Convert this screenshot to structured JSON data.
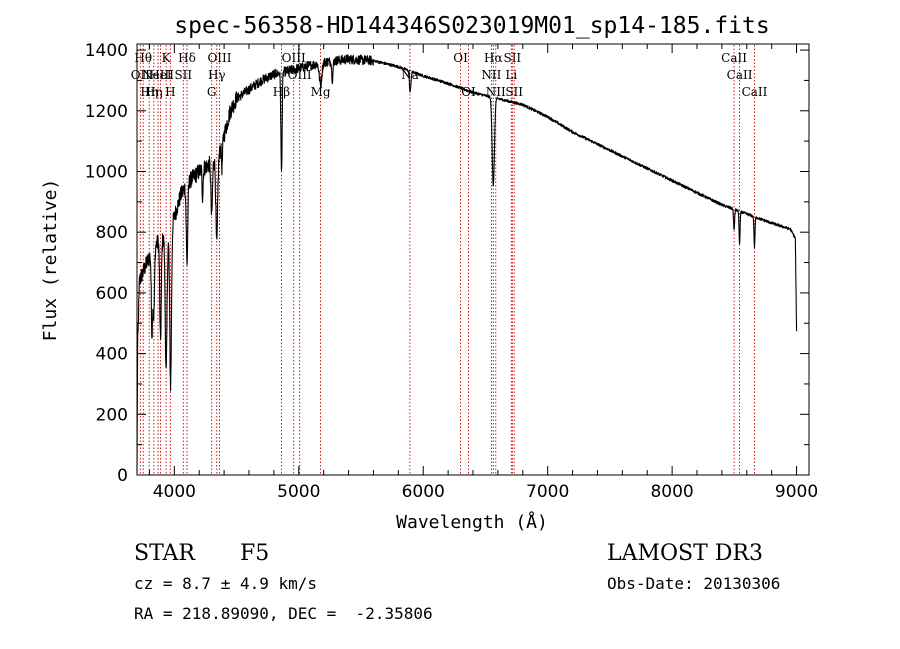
{
  "chart_data": {
    "type": "line",
    "title": "spec-56358-HD144346S023019M01_sp14-185.fits",
    "xlabel": "Wavelength (Å)",
    "ylabel": "Flux (relative)",
    "xlim": [
      3700,
      9100
    ],
    "ylim": [
      0,
      1420
    ],
    "xticks": [
      4000,
      5000,
      6000,
      7000,
      8000,
      9000
    ],
    "xtick_labels": [
      "4000",
      "5000",
      "6000",
      "7000",
      "8000",
      "9000"
    ],
    "yticks": [
      0,
      200,
      400,
      600,
      800,
      1000,
      1200,
      1400
    ],
    "ytick_labels": [
      "0",
      "200",
      "400",
      "600",
      "800",
      "1000",
      "1200",
      "1400"
    ],
    "continuum": [
      [
        3700,
        0
      ],
      [
        3705,
        420
      ],
      [
        3720,
        640
      ],
      [
        3780,
        700
      ],
      [
        3850,
        760
      ],
      [
        3950,
        790
      ],
      [
        4000,
        850
      ],
      [
        4050,
        920
      ],
      [
        4100,
        960
      ],
      [
        4200,
        1000
      ],
      [
        4300,
        1030
      ],
      [
        4350,
        1040
      ],
      [
        4400,
        1120
      ],
      [
        4450,
        1200
      ],
      [
        4500,
        1240
      ],
      [
        4600,
        1270
      ],
      [
        4700,
        1300
      ],
      [
        4800,
        1320
      ],
      [
        5000,
        1340
      ],
      [
        5200,
        1360
      ],
      [
        5400,
        1370
      ],
      [
        5600,
        1365
      ],
      [
        5800,
        1345
      ],
      [
        6000,
        1315
      ],
      [
        6200,
        1290
      ],
      [
        6400,
        1260
      ],
      [
        6600,
        1240
      ],
      [
        6800,
        1220
      ],
      [
        7000,
        1180
      ],
      [
        7200,
        1130
      ],
      [
        7400,
        1090
      ],
      [
        7600,
        1050
      ],
      [
        7800,
        1010
      ],
      [
        8000,
        970
      ],
      [
        8200,
        930
      ],
      [
        8400,
        890
      ],
      [
        8600,
        860
      ],
      [
        8800,
        830
      ],
      [
        8950,
        810
      ],
      [
        8990,
        780
      ],
      [
        9000,
        470
      ]
    ],
    "absorption_lines": [
      {
        "center": 3820,
        "depth": 260,
        "width": 5
      },
      {
        "center": 3835,
        "depth": 220,
        "width": 6
      },
      {
        "center": 3889,
        "depth": 330,
        "width": 6
      },
      {
        "center": 3934,
        "depth": 450,
        "width": 7
      },
      {
        "center": 3970,
        "depth": 520,
        "width": 7
      },
      {
        "center": 4102,
        "depth": 260,
        "width": 6
      },
      {
        "center": 4227,
        "depth": 90,
        "width": 4
      },
      {
        "center": 4300,
        "depth": 180,
        "width": 6
      },
      {
        "center": 4341,
        "depth": 280,
        "width": 7
      },
      {
        "center": 4383,
        "depth": 80,
        "width": 4
      },
      {
        "center": 4861,
        "depth": 330,
        "width": 5
      },
      {
        "center": 5175,
        "depth": 70,
        "width": 10
      },
      {
        "center": 5270,
        "depth": 60,
        "width": 5
      },
      {
        "center": 5895,
        "depth": 70,
        "width": 6
      },
      {
        "center": 6563,
        "depth": 290,
        "width": 9
      },
      {
        "center": 8498,
        "depth": 70,
        "width": 4
      },
      {
        "center": 8542,
        "depth": 110,
        "width": 4
      },
      {
        "center": 8662,
        "depth": 100,
        "width": 4
      }
    ],
    "markers": [
      {
        "x": 3727,
        "label": "OII",
        "row": 2
      },
      {
        "x": 3750,
        "label": "Hθ",
        "row": 1
      },
      {
        "x": 3798,
        "label": "Hη",
        "row": 3
      },
      {
        "x": 3835,
        "label": "Hη",
        "row": 3
      },
      {
        "x": 3869,
        "label": "NeIII",
        "row": 2
      },
      {
        "x": 3889,
        "label": "HeI",
        "row": 2
      },
      {
        "x": 3934,
        "label": "K",
        "row": 1
      },
      {
        "x": 3968,
        "label": "H",
        "row": 3
      },
      {
        "x": 4072,
        "label": "SII",
        "row": 2
      },
      {
        "x": 4102,
        "label": "Hδ",
        "row": 1
      },
      {
        "x": 4300,
        "label": "G",
        "row": 3
      },
      {
        "x": 4341,
        "label": "Hγ",
        "row": 2
      },
      {
        "x": 4363,
        "label": "OIII",
        "row": 1
      },
      {
        "x": 4861,
        "label": "Hβ",
        "row": 3
      },
      {
        "x": 4959,
        "label": "OIII",
        "row": 1
      },
      {
        "x": 5007,
        "label": "OIII",
        "row": 2
      },
      {
        "x": 5175,
        "label": "Mg",
        "row": 3
      },
      {
        "x": 5893,
        "label": "Na",
        "row": 2
      },
      {
        "x": 6300,
        "label": "OI",
        "row": 1
      },
      {
        "x": 6364,
        "label": "OI",
        "row": 3
      },
      {
        "x": 6548,
        "label": "NII",
        "row": 2
      },
      {
        "x": 6563,
        "label": "Hα",
        "row": 1
      },
      {
        "x": 6583,
        "label": "NII",
        "row": 3
      },
      {
        "x": 6708,
        "label": "Li",
        "row": 2
      },
      {
        "x": 6716,
        "label": "SII",
        "row": 1
      },
      {
        "x": 6731,
        "label": "SII",
        "row": 3
      },
      {
        "x": 8498,
        "label": "CaII",
        "row": 1
      },
      {
        "x": 8542,
        "label": "CaII",
        "row": 2
      },
      {
        "x": 8662,
        "label": "CaII",
        "row": 3
      }
    ]
  },
  "info": {
    "object_class": "STAR",
    "subclass": "F5",
    "survey": "LAMOST DR3",
    "redshift": "cz = 8.7 ± 4.9 km/s",
    "obs_date": "Obs-Date: 20130306",
    "coords": "RA = 218.89090, DEC =  -2.35806"
  },
  "colors": {
    "spectrum": "#000000",
    "marker_line": "#cc0000",
    "axis": "#000000"
  }
}
